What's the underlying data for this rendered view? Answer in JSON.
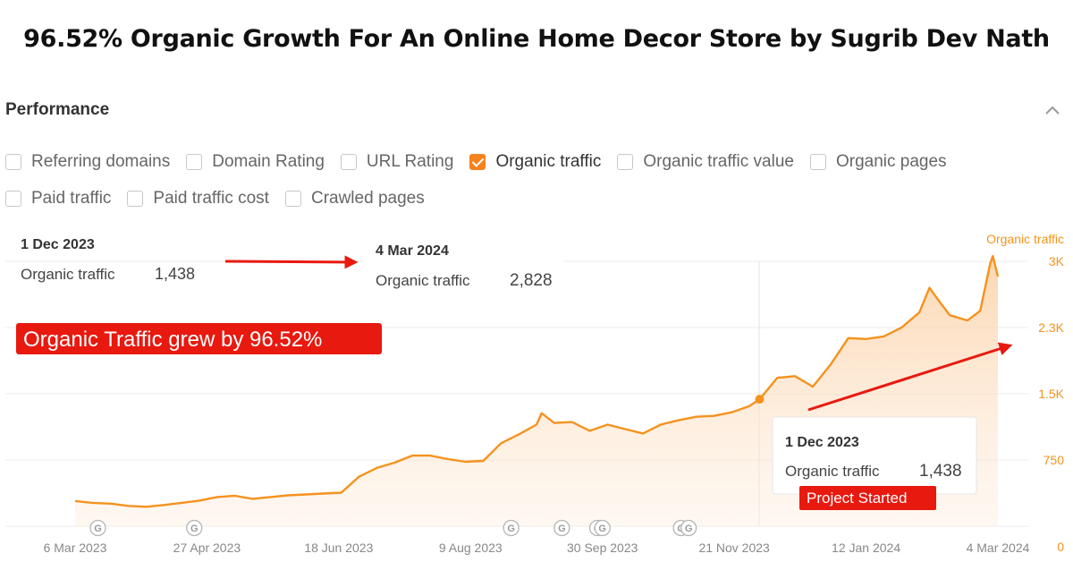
{
  "headline": "96.52% Organic Growth For An Online Home Decor Store by Sugrib Dev Nath",
  "panel": {
    "title": "Performance",
    "collapse_icon": "chevron-up-icon"
  },
  "checkboxes": {
    "row1": [
      {
        "label": "Referring domains",
        "checked": false
      },
      {
        "label": "Domain Rating",
        "checked": false
      },
      {
        "label": "URL Rating",
        "checked": false
      },
      {
        "label": "Organic traffic",
        "checked": true
      },
      {
        "label": "Organic traffic value",
        "checked": false
      },
      {
        "label": "Organic pages",
        "checked": false
      }
    ],
    "row2": [
      {
        "label": "Paid traffic",
        "checked": false
      },
      {
        "label": "Paid traffic cost",
        "checked": false
      },
      {
        "label": "Crawled pages",
        "checked": false
      }
    ]
  },
  "colors": {
    "accent": "#f5921e",
    "annotation_red": "#e8190f"
  },
  "annotations": {
    "start": {
      "date": "1 Dec 2023",
      "metric": "Organic traffic",
      "value": "1,438"
    },
    "end": {
      "date": "4 Mar 2024",
      "metric": "Organic traffic",
      "value": "2,828"
    },
    "growth_banner": "Organic Traffic grew by 96.52%",
    "hover": {
      "date": "1 Dec 2023",
      "metric": "Organic traffic",
      "value": "1,438"
    },
    "project_badge": "Project Started"
  },
  "chart_data": {
    "type": "area",
    "series": [
      {
        "name": "Organic traffic",
        "points": [
          [
            "2023-03-06",
            285
          ],
          [
            "2023-03-13",
            265
          ],
          [
            "2023-03-20",
            255
          ],
          [
            "2023-03-27",
            230
          ],
          [
            "2023-04-03",
            220
          ],
          [
            "2023-04-10",
            240
          ],
          [
            "2023-04-17",
            265
          ],
          [
            "2023-04-24",
            290
          ],
          [
            "2023-05-01",
            330
          ],
          [
            "2023-05-08",
            345
          ],
          [
            "2023-05-15",
            310
          ],
          [
            "2023-05-22",
            330
          ],
          [
            "2023-05-29",
            350
          ],
          [
            "2023-06-05",
            360
          ],
          [
            "2023-06-12",
            370
          ],
          [
            "2023-06-19",
            380
          ],
          [
            "2023-06-26",
            560
          ],
          [
            "2023-07-03",
            660
          ],
          [
            "2023-07-10",
            720
          ],
          [
            "2023-07-17",
            800
          ],
          [
            "2023-07-24",
            800
          ],
          [
            "2023-07-31",
            760
          ],
          [
            "2023-08-07",
            730
          ],
          [
            "2023-08-14",
            740
          ],
          [
            "2023-08-21",
            940
          ],
          [
            "2023-08-28",
            1040
          ],
          [
            "2023-09-04",
            1150
          ],
          [
            "2023-09-06",
            1280
          ],
          [
            "2023-09-11",
            1170
          ],
          [
            "2023-09-18",
            1180
          ],
          [
            "2023-09-25",
            1080
          ],
          [
            "2023-10-02",
            1150
          ],
          [
            "2023-10-09",
            1100
          ],
          [
            "2023-10-16",
            1050
          ],
          [
            "2023-10-23",
            1150
          ],
          [
            "2023-10-30",
            1200
          ],
          [
            "2023-11-06",
            1240
          ],
          [
            "2023-11-13",
            1250
          ],
          [
            "2023-11-20",
            1290
          ],
          [
            "2023-11-27",
            1360
          ],
          [
            "2023-12-01",
            1438
          ],
          [
            "2023-12-08",
            1680
          ],
          [
            "2023-12-15",
            1700
          ],
          [
            "2023-12-22",
            1580
          ],
          [
            "2023-12-29",
            1830
          ],
          [
            "2024-01-05",
            2130
          ],
          [
            "2024-01-12",
            2120
          ],
          [
            "2024-01-19",
            2150
          ],
          [
            "2024-01-26",
            2250
          ],
          [
            "2024-02-02",
            2420
          ],
          [
            "2024-02-06",
            2700
          ],
          [
            "2024-02-09",
            2580
          ],
          [
            "2024-02-14",
            2390
          ],
          [
            "2024-02-21",
            2330
          ],
          [
            "2024-02-26",
            2440
          ],
          [
            "2024-03-01",
            2980
          ],
          [
            "2024-03-02",
            3060
          ],
          [
            "2024-03-04",
            2828
          ]
        ]
      }
    ],
    "x_ticks": [
      "6 Mar 2023",
      "27 Apr 2023",
      "18 Jun 2023",
      "9 Aug 2023",
      "30 Sep 2023",
      "21 Nov 2023",
      "12 Jan 2024",
      "4 Mar 2024"
    ],
    "y_ticks": [
      "0",
      "750",
      "1.5K",
      "2.3K",
      "3K"
    ],
    "y_tick_values": [
      0,
      750,
      1500,
      2250,
      3000
    ],
    "ylim": [
      0,
      3000
    ],
    "ylabel": "Organic traffic",
    "marker": {
      "date": "2023-12-01",
      "value": 1438
    },
    "google_updates": [
      "2023-03-15",
      "2023-04-22",
      "2023-08-25",
      "2023-09-14",
      "2023-09-28",
      "2023-09-30",
      "2023-10-31",
      "2023-11-03"
    ],
    "grid": true
  }
}
